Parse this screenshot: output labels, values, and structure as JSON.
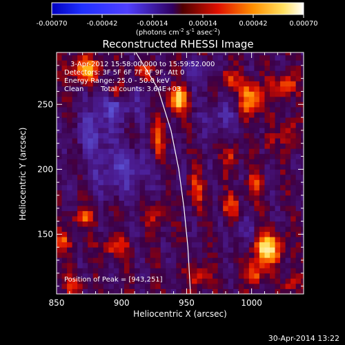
{
  "chart_data": {
    "type": "heatmap",
    "title": "Reconstructed RHESSI Image",
    "xlabel": "Heliocentric X (arcsec)",
    "ylabel": "Heliocentric Y (arcsec)",
    "xlim": [
      850,
      1040
    ],
    "ylim": [
      104,
      290
    ],
    "x_ticks": [
      850,
      900,
      950,
      1000
    ],
    "y_ticks": [
      150,
      200,
      250
    ],
    "colorbar": {
      "ticks": [
        "-0.00070",
        "-0.00042",
        "-0.00014",
        "0.00014",
        "0.00042",
        "0.00070"
      ],
      "range": [
        -0.0007,
        0.0007
      ],
      "unit_label_parts": [
        "(photons cm",
        "-2",
        " s",
        "-1",
        " asec",
        "-2",
        ")"
      ]
    },
    "annotations": {
      "time": "3-Apr-2012 15:58:00.000 to 15:59:52.000",
      "detectors": "Detectors: 3F 5F 6F 7F 8F 9F, Att 0",
      "energy": "Energy Range: 25.0 - 50.0 keV",
      "clean": "Clean",
      "counts": "Total counts: 3.64E+03",
      "peak": "Position of Peak = [943,251]"
    },
    "peak": [
      943,
      251
    ],
    "limb_curve": [
      [
        911,
        290
      ],
      [
        928,
        262
      ],
      [
        938,
        230
      ],
      [
        944,
        200
      ],
      [
        948,
        170
      ],
      [
        951,
        140
      ],
      [
        953,
        104
      ]
    ],
    "sources": [
      {
        "x": 943,
        "y": 253,
        "sx": 5,
        "sy": 7,
        "a": 1.0
      },
      {
        "x": 1012,
        "y": 139,
        "sx": 8,
        "sy": 8,
        "a": 1.0
      },
      {
        "x": 1000,
        "y": 255,
        "sx": 6,
        "sy": 9,
        "a": 0.85
      },
      {
        "x": 1025,
        "y": 265,
        "sx": 6,
        "sy": 6,
        "a": 0.6
      },
      {
        "x": 982,
        "y": 270,
        "sx": 5,
        "sy": 5,
        "a": 0.55
      },
      {
        "x": 872,
        "y": 277,
        "sx": 8,
        "sy": 7,
        "a": 0.75
      },
      {
        "x": 895,
        "y": 260,
        "sx": 5,
        "sy": 5,
        "a": 0.6
      },
      {
        "x": 915,
        "y": 275,
        "sx": 5,
        "sy": 5,
        "a": 0.5
      },
      {
        "x": 927,
        "y": 222,
        "sx": 4,
        "sy": 10,
        "a": 0.6
      },
      {
        "x": 1030,
        "y": 228,
        "sx": 4,
        "sy": 8,
        "a": 0.45
      },
      {
        "x": 985,
        "y": 210,
        "sx": 4,
        "sy": 8,
        "a": 0.4
      },
      {
        "x": 957,
        "y": 184,
        "sx": 4,
        "sy": 9,
        "a": 0.5
      },
      {
        "x": 983,
        "y": 172,
        "sx": 6,
        "sy": 6,
        "a": 0.45
      },
      {
        "x": 1002,
        "y": 187,
        "sx": 4,
        "sy": 8,
        "a": 0.45
      },
      {
        "x": 927,
        "y": 167,
        "sx": 5,
        "sy": 7,
        "a": 0.45
      },
      {
        "x": 870,
        "y": 163,
        "sx": 6,
        "sy": 5,
        "a": 0.5
      },
      {
        "x": 855,
        "y": 145,
        "sx": 5,
        "sy": 6,
        "a": 0.4
      },
      {
        "x": 895,
        "y": 140,
        "sx": 7,
        "sy": 5,
        "a": 0.5
      },
      {
        "x": 960,
        "y": 118,
        "sx": 5,
        "sy": 7,
        "a": 0.55
      },
      {
        "x": 1003,
        "y": 120,
        "sx": 5,
        "sy": 6,
        "a": 0.6
      },
      {
        "x": 1030,
        "y": 112,
        "sx": 4,
        "sy": 5,
        "a": 0.5
      },
      {
        "x": 863,
        "y": 112,
        "sx": 6,
        "sy": 5,
        "a": 0.45
      },
      {
        "x": 1013,
        "y": 223,
        "sx": 3,
        "sy": 7,
        "a": 0.35
      }
    ],
    "negative_regions": [
      {
        "x": 895,
        "y": 250,
        "sx": 14,
        "sy": 10,
        "a": 0.5
      },
      {
        "x": 900,
        "y": 200,
        "sx": 18,
        "sy": 14,
        "a": 0.45
      },
      {
        "x": 878,
        "y": 228,
        "sx": 10,
        "sy": 10,
        "a": 0.4
      },
      {
        "x": 975,
        "y": 240,
        "sx": 10,
        "sy": 10,
        "a": 0.35
      },
      {
        "x": 960,
        "y": 275,
        "sx": 8,
        "sy": 8,
        "a": 0.35
      },
      {
        "x": 995,
        "y": 150,
        "sx": 6,
        "sy": 10,
        "a": 0.3
      }
    ]
  },
  "footer": {
    "timestamp": "30-Apr-2014 13:22"
  }
}
